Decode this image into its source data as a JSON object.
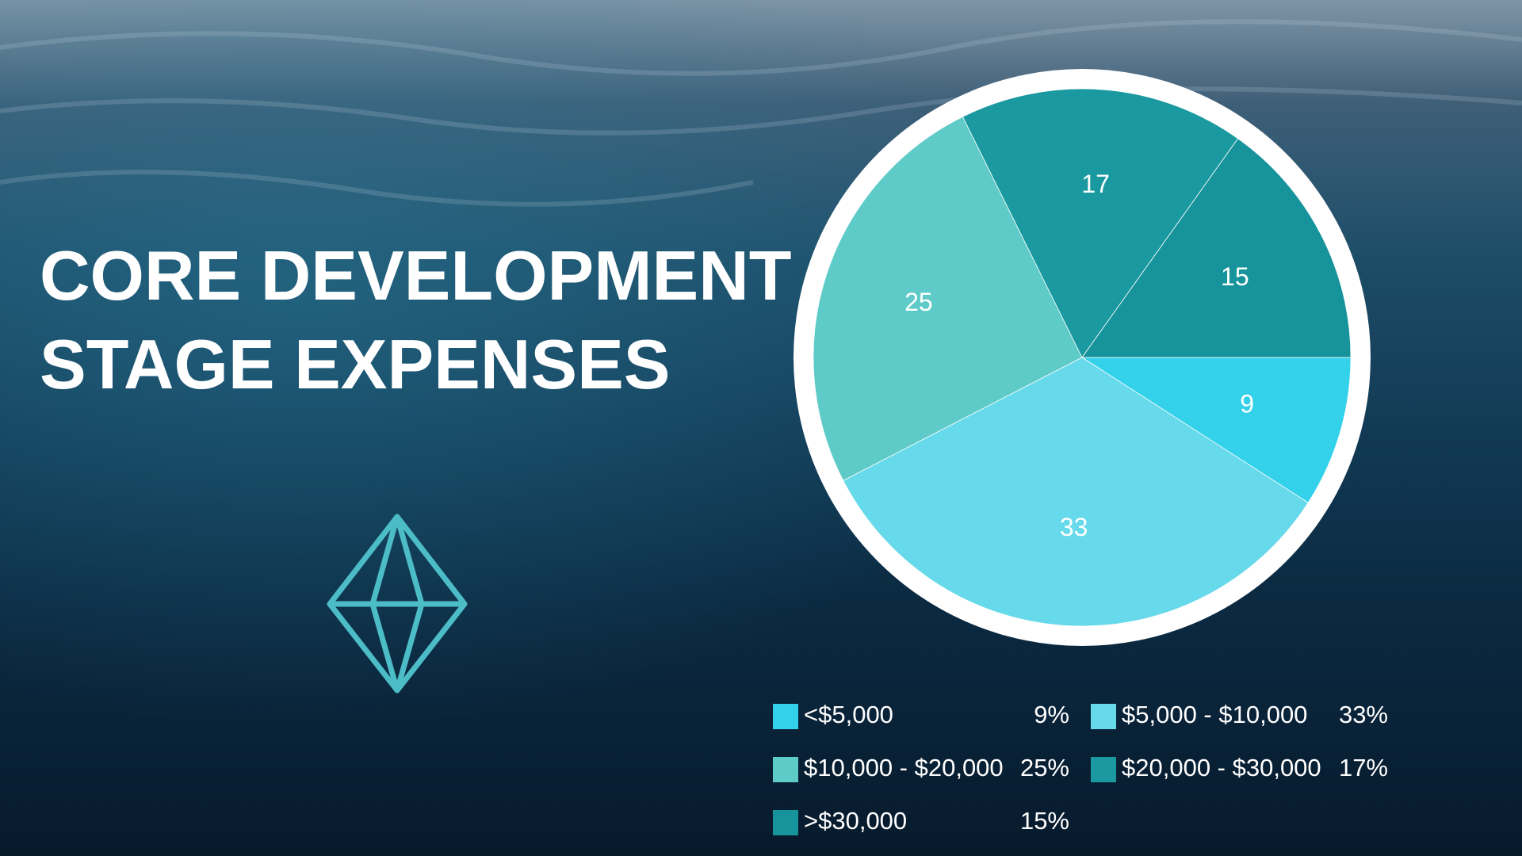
{
  "chart_data": {
    "type": "pie",
    "title_lines": [
      "CORE DEVELOPMENT",
      "STAGE EXPENSES"
    ],
    "categories": [
      "<$5,000",
      "$5,000 - $10,000",
      "$10,000 - $20,000",
      "$20,000 - $30,000",
      ">$30,000"
    ],
    "values": [
      9,
      33,
      25,
      17,
      15
    ],
    "value_labels": [
      "9%",
      "33%",
      "25%",
      "17%",
      "15%"
    ],
    "colors": [
      "#33d1ea",
      "#66d9ea",
      "#5ecbc8",
      "#1a9aa0",
      "#17939b"
    ]
  }
}
